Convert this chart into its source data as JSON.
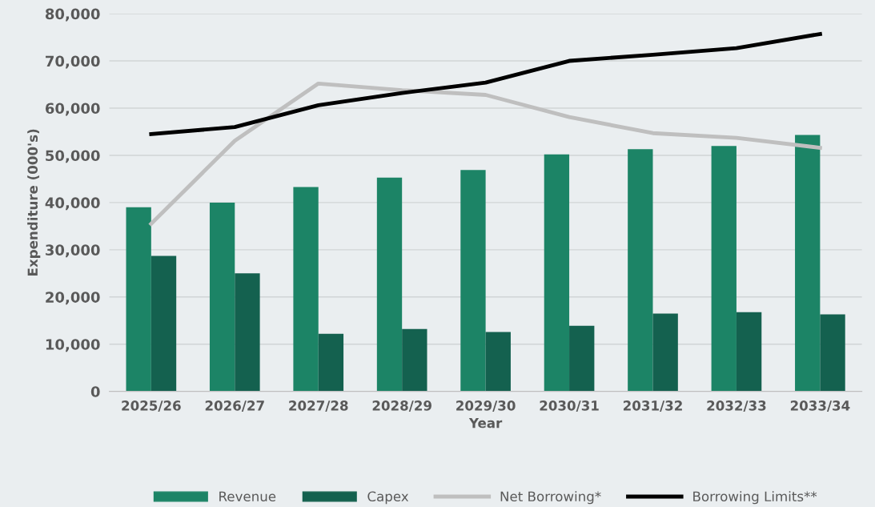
{
  "chart_data": {
    "type": "bar",
    "xlabel": "Year",
    "ylabel": "Expenditure (000's)",
    "categories": [
      "2025/26",
      "2026/27",
      "2027/28",
      "2028/29",
      "2029/30",
      "2030/31",
      "2031/32",
      "2032/33",
      "2033/34"
    ],
    "series": [
      {
        "name": "Revenue",
        "color": "#1c8466",
        "values": [
          39000,
          40000,
          43300,
          45300,
          46900,
          50200,
          51300,
          52000,
          54300
        ]
      },
      {
        "name": "Capex",
        "color": "#14614f",
        "values": [
          28700,
          25000,
          12200,
          13200,
          12600,
          13900,
          16500,
          16800,
          16300
        ]
      },
      {
        "name": "Net Borrowing*",
        "type": "line",
        "color": "#bfbfbf",
        "values": [
          35500,
          53100,
          65200,
          63800,
          62800,
          58100,
          54700,
          53700,
          51600
        ]
      },
      {
        "name": "Borrowing Limits**",
        "type": "line",
        "color": "#000000",
        "values": [
          54500,
          56000,
          60600,
          63200,
          65400,
          70000,
          71300,
          72700,
          75700
        ]
      }
    ],
    "ylim": [
      0,
      80000
    ],
    "yticks": [
      {
        "value": 0,
        "label": "0"
      },
      {
        "value": 10000,
        "label": "10,000"
      },
      {
        "value": 20000,
        "label": "20,000"
      },
      {
        "value": 30000,
        "label": "30,000"
      },
      {
        "value": 40000,
        "label": "40,000"
      },
      {
        "value": 50000,
        "label": "50,000"
      },
      {
        "value": 60000,
        "label": "60,000"
      },
      {
        "value": 70000,
        "label": "70,000"
      },
      {
        "value": 80000,
        "label": "80,000"
      }
    ],
    "grid": "y",
    "legend": "bottom",
    "marker": "none",
    "line_style": "solid"
  }
}
